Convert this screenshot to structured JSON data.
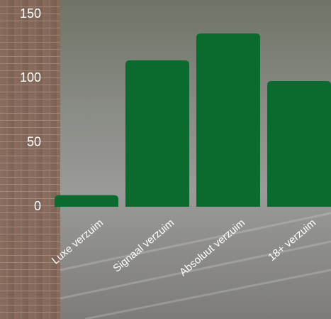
{
  "chart_data": {
    "type": "bar",
    "categories": [
      "Luxe verzuim",
      "Signaal verzuim",
      "Absoluut verzuim",
      "18+ verzuim"
    ],
    "values": [
      9,
      114,
      135,
      98
    ],
    "color": "#0b6b2f",
    "ylim": [
      0,
      150
    ],
    "yticks": [
      0,
      50,
      100,
      150
    ],
    "grid": false
  }
}
